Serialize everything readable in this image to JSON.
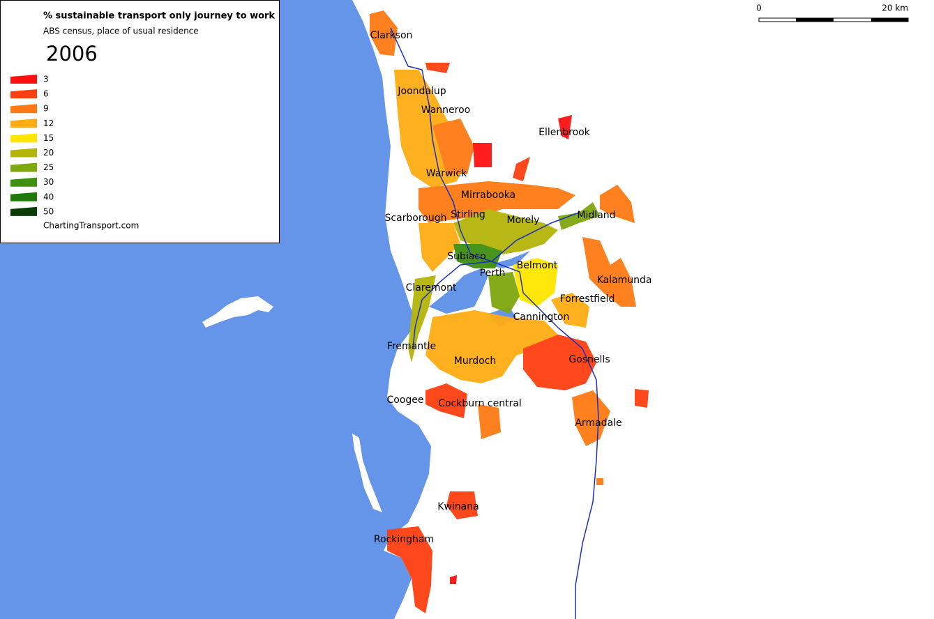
{
  "legend": {
    "title": "% sustainable transport only journey to work",
    "subtitle": "ABS census, place of usual residence",
    "year": 2006,
    "items": [
      {
        "value": 3,
        "color": "#ff1010"
      },
      {
        "value": 6,
        "color": "#ff3f10"
      },
      {
        "value": 9,
        "color": "#ff7a14"
      },
      {
        "value": 12,
        "color": "#ffac14"
      },
      {
        "value": 15,
        "color": "#ffe600"
      },
      {
        "value": 20,
        "color": "#b4b40a"
      },
      {
        "value": 25,
        "color": "#7fa70f"
      },
      {
        "value": 30,
        "color": "#3f8f10"
      },
      {
        "value": 40,
        "color": "#1f7a0a"
      },
      {
        "value": 50,
        "color": "#0a3c05"
      }
    ],
    "credit": "ChartingTransport.com"
  },
  "scale_bar": {
    "start": "0",
    "end": "20 km"
  },
  "places": [
    "Clarkson",
    "Joondalup",
    "Wanneroo",
    "Ellenbrook",
    "Warwick",
    "Mirrabooka",
    "Scarborough",
    "Stirling",
    "Morely",
    "Midland",
    "Subiaco",
    "Perth",
    "Belmont",
    "Claremont",
    "Kalamunda",
    "Forrestfield",
    "Cannington",
    "Fremantle",
    "Murdoch",
    "Gosnells",
    "Coogee",
    "Cockburn central",
    "Armadale",
    "Kwinana",
    "Rockingham"
  ]
}
